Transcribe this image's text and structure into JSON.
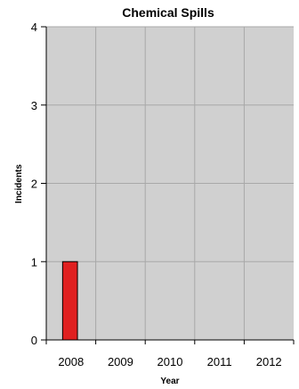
{
  "chart_data": {
    "type": "bar",
    "title": "Chemical Spills",
    "xlabel": "Year",
    "ylabel": "Incidents",
    "categories": [
      "2008",
      "2009",
      "2010",
      "2011",
      "2012"
    ],
    "values": [
      1,
      0,
      0,
      0,
      0
    ],
    "ylim": [
      0,
      4
    ],
    "yticks": [
      "0",
      "1",
      "2",
      "3",
      "4"
    ],
    "grid": true,
    "legend": "none",
    "colors": {
      "bar": "#e02020",
      "bar_border": "#000000",
      "plot_background": "#d0d0d0",
      "gridline": "#a8a8a8"
    }
  }
}
